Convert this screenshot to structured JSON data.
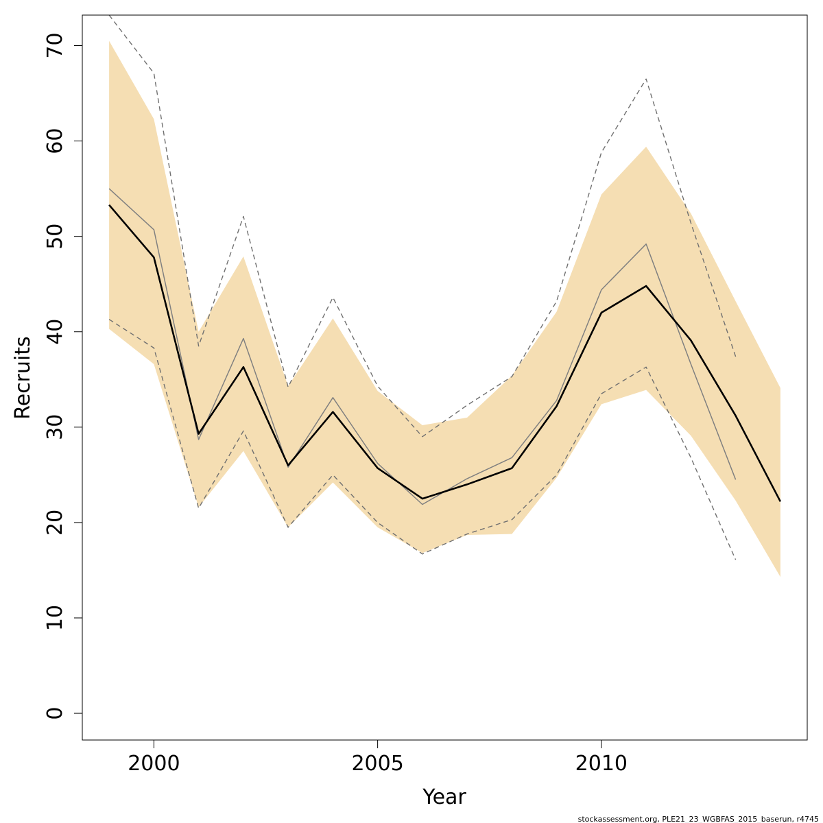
{
  "chart_data": {
    "type": "line",
    "title": "",
    "xlabel": "Year",
    "ylabel": "Recruits",
    "xlim": [
      1998.4,
      2014.6
    ],
    "ylim": [
      -2.8,
      73.2
    ],
    "x_ticks": [
      2000,
      2005,
      2010
    ],
    "y_ticks": [
      0,
      10,
      20,
      30,
      40,
      50,
      60,
      70
    ],
    "grid": false,
    "legend": "none",
    "years": [
      1999,
      2000,
      2001,
      2002,
      2003,
      2004,
      2005,
      2006,
      2007,
      2008,
      2009,
      2010,
      2011,
      2012,
      2013,
      2014
    ],
    "band": {
      "color": "#f5deb3",
      "lower": [
        40.3,
        36.6,
        21.6,
        27.5,
        19.5,
        24.2,
        19.5,
        16.8,
        18.7,
        18.8,
        24.7,
        32.4,
        33.9,
        29.1,
        22.3,
        14.3
      ],
      "upper": [
        70.5,
        62.3,
        40.0,
        47.9,
        34.3,
        41.4,
        33.8,
        30.2,
        31.0,
        35.4,
        42.1,
        54.4,
        59.4,
        52.4,
        43.2,
        34.1
      ]
    },
    "series": [
      {
        "color": "#000000",
        "style": "solid-thick",
        "values": [
          53.3,
          47.8,
          29.3,
          36.3,
          26.0,
          31.6,
          25.7,
          22.5,
          24.0,
          25.7,
          32.2,
          42.0,
          44.8,
          39.1,
          31.2,
          22.2
        ]
      },
      {
        "color": "#808080",
        "style": "solid-thin",
        "values": [
          55.0,
          50.7,
          28.7,
          39.3,
          25.8,
          33.1,
          26.2,
          21.9,
          24.6,
          26.8,
          32.8,
          44.4,
          49.2,
          36.6,
          24.5
        ]
      },
      {
        "color": "#707070",
        "style": "dashed",
        "values": [
          73.2,
          67.1,
          38.5,
          52.1,
          34.2,
          43.6,
          34.3,
          29.0,
          32.3,
          35.3,
          43.2,
          58.8,
          66.5,
          51.4,
          37.4
        ]
      },
      {
        "color": "#707070",
        "style": "dashed",
        "values": [
          41.3,
          38.3,
          21.5,
          29.6,
          19.5,
          25.0,
          20.0,
          16.7,
          18.8,
          20.3,
          25.0,
          33.5,
          36.3,
          26.8,
          16.1
        ]
      }
    ],
    "footer_note": "stockassessment.org, PLE21_23_WGBFAS_2015_baserun, r4745"
  }
}
